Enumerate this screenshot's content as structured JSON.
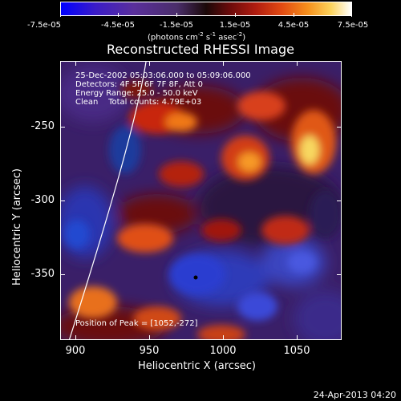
{
  "colorbar": {
    "tick_labels": [
      "-7.5e-05",
      "-4.5e-05",
      "-1.5e-05",
      "1.5e-05",
      "4.5e-05",
      "7.5e-05"
    ],
    "units": "(photons cm",
    "units_exp1": "-2",
    "units_mid": " s",
    "units_exp2": "-1",
    "units_mid2": " asec",
    "units_exp3": "-2",
    "units_end": ")"
  },
  "title": "Reconstructed RHESSI Image",
  "info": {
    "time_range": "25-Dec-2002 05:03:06.000 to 05:09:06.000",
    "detectors": "Detectors: 4F 5F 6F 7F 8F, Att 0",
    "energy": "Energy Range: 25.0 - 50.0 keV",
    "method": "Clean    Total counts: 4.79E+03"
  },
  "peak": "Position of Peak = [1052,-272]",
  "axes": {
    "x_title": "Heliocentric X (arcsec)",
    "y_title": "Heliocentric Y (arcsec)",
    "x_ticks": [
      "900",
      "950",
      "1000",
      "1050"
    ],
    "y_ticks": [
      "-250",
      "-300",
      "-350"
    ]
  },
  "timestamp": "24-Apr-2013 04:20",
  "colors": {
    "background": "#000000",
    "limb": "#ffffff"
  }
}
